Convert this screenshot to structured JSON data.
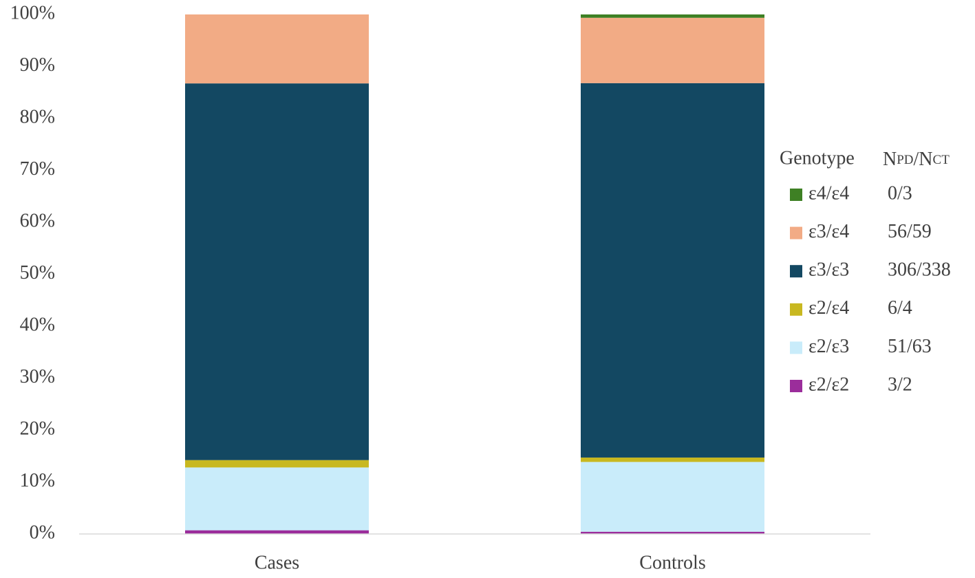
{
  "chart_data": {
    "type": "stacked_bar",
    "categories": [
      "Cases",
      "Controls"
    ],
    "series": [
      {
        "name": "ε2/ε2",
        "color": "#9b2d9b",
        "values": [
          0.71,
          0.43
        ],
        "label": "3/2"
      },
      {
        "name": "ε2/ε3",
        "color": "#c9ecfa",
        "values": [
          12.09,
          13.43
        ],
        "label": "51/63"
      },
      {
        "name": "ε2/ε4",
        "color": "#c8b820",
        "values": [
          1.42,
          0.85
        ],
        "label": "6/4"
      },
      {
        "name": "ε3/ε3",
        "color": "#134862",
        "values": [
          72.51,
          72.07
        ],
        "label": "306/338"
      },
      {
        "name": "ε3/ε4",
        "color": "#f2ab85",
        "values": [
          13.27,
          12.58
        ],
        "label": "56/59"
      },
      {
        "name": "ε4/ε4",
        "color": "#3e8024",
        "values": [
          0,
          0.64
        ],
        "label": "0/3"
      }
    ],
    "legend_title": "Genotype",
    "legend_count_title": [
      "N",
      "PD",
      "/N",
      "CT"
    ],
    "ylim": [
      0,
      100
    ],
    "yticks": [
      {
        "value": 0,
        "label": "0%"
      },
      {
        "value": 10,
        "label": "10%"
      },
      {
        "value": 20,
        "label": "20%"
      },
      {
        "value": 30,
        "label": "30%"
      },
      {
        "value": 40,
        "label": "40%"
      },
      {
        "value": 50,
        "label": "50%"
      },
      {
        "value": 60,
        "label": "60%"
      },
      {
        "value": 70,
        "label": "70%"
      },
      {
        "value": 80,
        "label": "80%"
      },
      {
        "value": 90,
        "label": "90%"
      },
      {
        "value": 100,
        "label": "100%"
      }
    ],
    "grid": false,
    "legend": "right"
  }
}
